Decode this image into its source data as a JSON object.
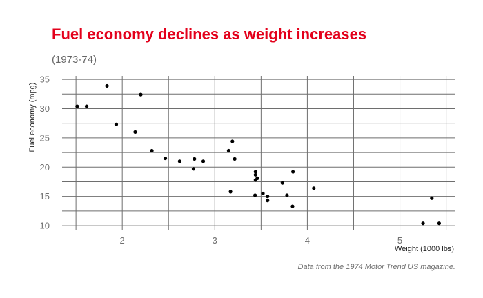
{
  "chart_data": {
    "type": "scatter",
    "title": "Fuel economy declines as weight increases",
    "subtitle": "(1973-74)",
    "xlabel": "Weight (1000 lbs)",
    "ylabel": "Fuel economy (mpg)",
    "caption": "Data from the 1974 Motor Trend US magazine.",
    "xlim": [
      1.35,
      5.6
    ],
    "ylim": [
      9.3,
      35.6
    ],
    "x_ticks": [
      2,
      3,
      4,
      5
    ],
    "y_ticks": [
      10,
      15,
      20,
      25,
      30,
      35
    ],
    "x_minor_ticks": [
      1.5,
      2.5,
      3.5,
      4.5,
      5.5
    ],
    "y_minor_ticks": [
      12.5,
      17.5,
      22.5,
      27.5,
      32.5
    ],
    "grid": true,
    "legend": "none",
    "point_color": "#000000",
    "title_color": "#e3001b",
    "points": [
      {
        "x": 2.62,
        "y": 21.0
      },
      {
        "x": 2.875,
        "y": 21.0
      },
      {
        "x": 2.32,
        "y": 22.8
      },
      {
        "x": 3.215,
        "y": 21.4
      },
      {
        "x": 3.44,
        "y": 18.7
      },
      {
        "x": 3.46,
        "y": 18.1
      },
      {
        "x": 3.57,
        "y": 14.3
      },
      {
        "x": 3.19,
        "y": 24.4
      },
      {
        "x": 3.15,
        "y": 22.8
      },
      {
        "x": 3.44,
        "y": 19.2
      },
      {
        "x": 3.44,
        "y": 17.8
      },
      {
        "x": 4.07,
        "y": 16.4
      },
      {
        "x": 3.73,
        "y": 17.3
      },
      {
        "x": 3.78,
        "y": 15.2
      },
      {
        "x": 5.25,
        "y": 10.4
      },
      {
        "x": 5.424,
        "y": 10.4
      },
      {
        "x": 5.345,
        "y": 14.7
      },
      {
        "x": 2.2,
        "y": 32.4
      },
      {
        "x": 1.615,
        "y": 30.4
      },
      {
        "x": 1.835,
        "y": 33.9
      },
      {
        "x": 2.465,
        "y": 21.5
      },
      {
        "x": 3.52,
        "y": 15.5
      },
      {
        "x": 3.435,
        "y": 15.2
      },
      {
        "x": 3.84,
        "y": 13.3
      },
      {
        "x": 3.845,
        "y": 19.2
      },
      {
        "x": 1.935,
        "y": 27.3
      },
      {
        "x": 2.14,
        "y": 26.0
      },
      {
        "x": 1.513,
        "y": 30.4
      },
      {
        "x": 3.17,
        "y": 15.8
      },
      {
        "x": 2.77,
        "y": 19.7
      },
      {
        "x": 3.57,
        "y": 15.0
      },
      {
        "x": 2.78,
        "y": 21.4
      }
    ]
  }
}
